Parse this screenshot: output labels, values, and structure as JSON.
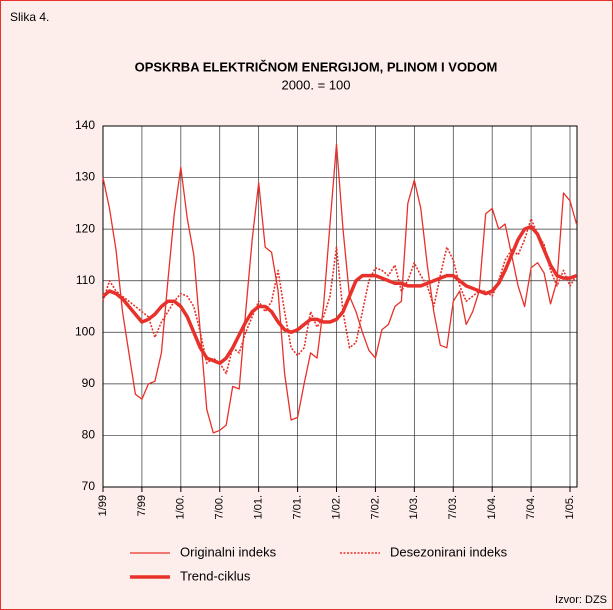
{
  "figure_label": "Slika 4.",
  "source": "Izvor: DZS",
  "chart_data": {
    "type": "line",
    "title": "OPSKRBA ELEKTRIČNOM ENERGIJOM, PLINOM I VODOM",
    "subtitle": "2000. = 100",
    "categories": [
      "1/99",
      null,
      null,
      null,
      null,
      null,
      "7/99",
      null,
      null,
      null,
      null,
      null,
      "1/00.",
      null,
      null,
      null,
      null,
      null,
      "7/00.",
      null,
      null,
      null,
      null,
      null,
      "1/01.",
      null,
      null,
      null,
      null,
      null,
      "7/01.",
      null,
      null,
      null,
      null,
      null,
      "1/02.",
      null,
      null,
      null,
      null,
      null,
      "7/02.",
      null,
      null,
      null,
      null,
      null,
      "1/03.",
      null,
      null,
      null,
      null,
      null,
      "7/03.",
      null,
      null,
      null,
      null,
      null,
      "1/04.",
      null,
      null,
      null,
      null,
      null,
      "7/04.",
      null,
      null,
      null,
      null,
      null,
      "1/05.",
      null
    ],
    "series": [
      {
        "name": "Originalni indeks",
        "color": "#e8312a",
        "line_width": 1.3,
        "dashed": false,
        "values": [
          130,
          124,
          116,
          104,
          96,
          88,
          87,
          90,
          90.5,
          96,
          110,
          123,
          132,
          122,
          115,
          100,
          85,
          80.5,
          81,
          82,
          89.5,
          89,
          104,
          118,
          129,
          116.5,
          115.5,
          108,
          92,
          83,
          83.5,
          90,
          96,
          95,
          105,
          121,
          136.5,
          120,
          107,
          104,
          100,
          96.5,
          95,
          100.5,
          101.5,
          105,
          106,
          125,
          129.5,
          124,
          113,
          104,
          97.5,
          97,
          106,
          108,
          101.5,
          104,
          108,
          123,
          124,
          120,
          121,
          115,
          109,
          105,
          112.5,
          113.5,
          111.5,
          105.5,
          110,
          127,
          125.5,
          121
        ]
      },
      {
        "name": "Desezonirani indeks",
        "color": "#e8312a",
        "line_width": 1.6,
        "dashed": true,
        "values": [
          106,
          110,
          108,
          107,
          106,
          105,
          104,
          103,
          99,
          102,
          104,
          106,
          107.5,
          107,
          105,
          100,
          94,
          95,
          94,
          92,
          97,
          96,
          100,
          103,
          106,
          104,
          106,
          112,
          104,
          97,
          95.5,
          97,
          104,
          101,
          103,
          107,
          116.5,
          104,
          97,
          98,
          104,
          110,
          112.5,
          112,
          111,
          113,
          108,
          110,
          113.5,
          111,
          109,
          105,
          111,
          116.5,
          114,
          109,
          106,
          107,
          108,
          108,
          107,
          110,
          114,
          116,
          115,
          118,
          122,
          119,
          117,
          112,
          109,
          112,
          109,
          111
        ]
      },
      {
        "name": "Trend-ciklus",
        "color": "#e8312a",
        "line_width": 3.5,
        "dashed": false,
        "values": [
          107,
          108,
          107.5,
          106.5,
          105,
          103.5,
          102,
          102.5,
          103.5,
          105,
          106,
          106,
          105,
          103,
          100,
          97,
          95,
          94.5,
          94,
          95,
          97,
          99.5,
          102,
          104,
          105,
          105,
          104,
          102,
          100.5,
          100,
          100.5,
          101.5,
          102.5,
          102.5,
          102,
          102,
          102.5,
          104,
          107,
          110,
          111,
          111,
          111,
          110.5,
          110,
          109.5,
          109.5,
          109,
          109,
          109,
          109.5,
          110,
          110.5,
          111,
          111,
          110,
          109,
          108.5,
          108,
          107.5,
          108,
          109.5,
          112,
          115,
          118,
          120,
          120.5,
          119,
          116,
          113,
          111,
          110.5,
          110.5,
          111
        ]
      }
    ],
    "ylim": [
      70,
      140
    ],
    "yticks": [
      70,
      80,
      90,
      100,
      110,
      120,
      130,
      140
    ],
    "grid": true
  }
}
